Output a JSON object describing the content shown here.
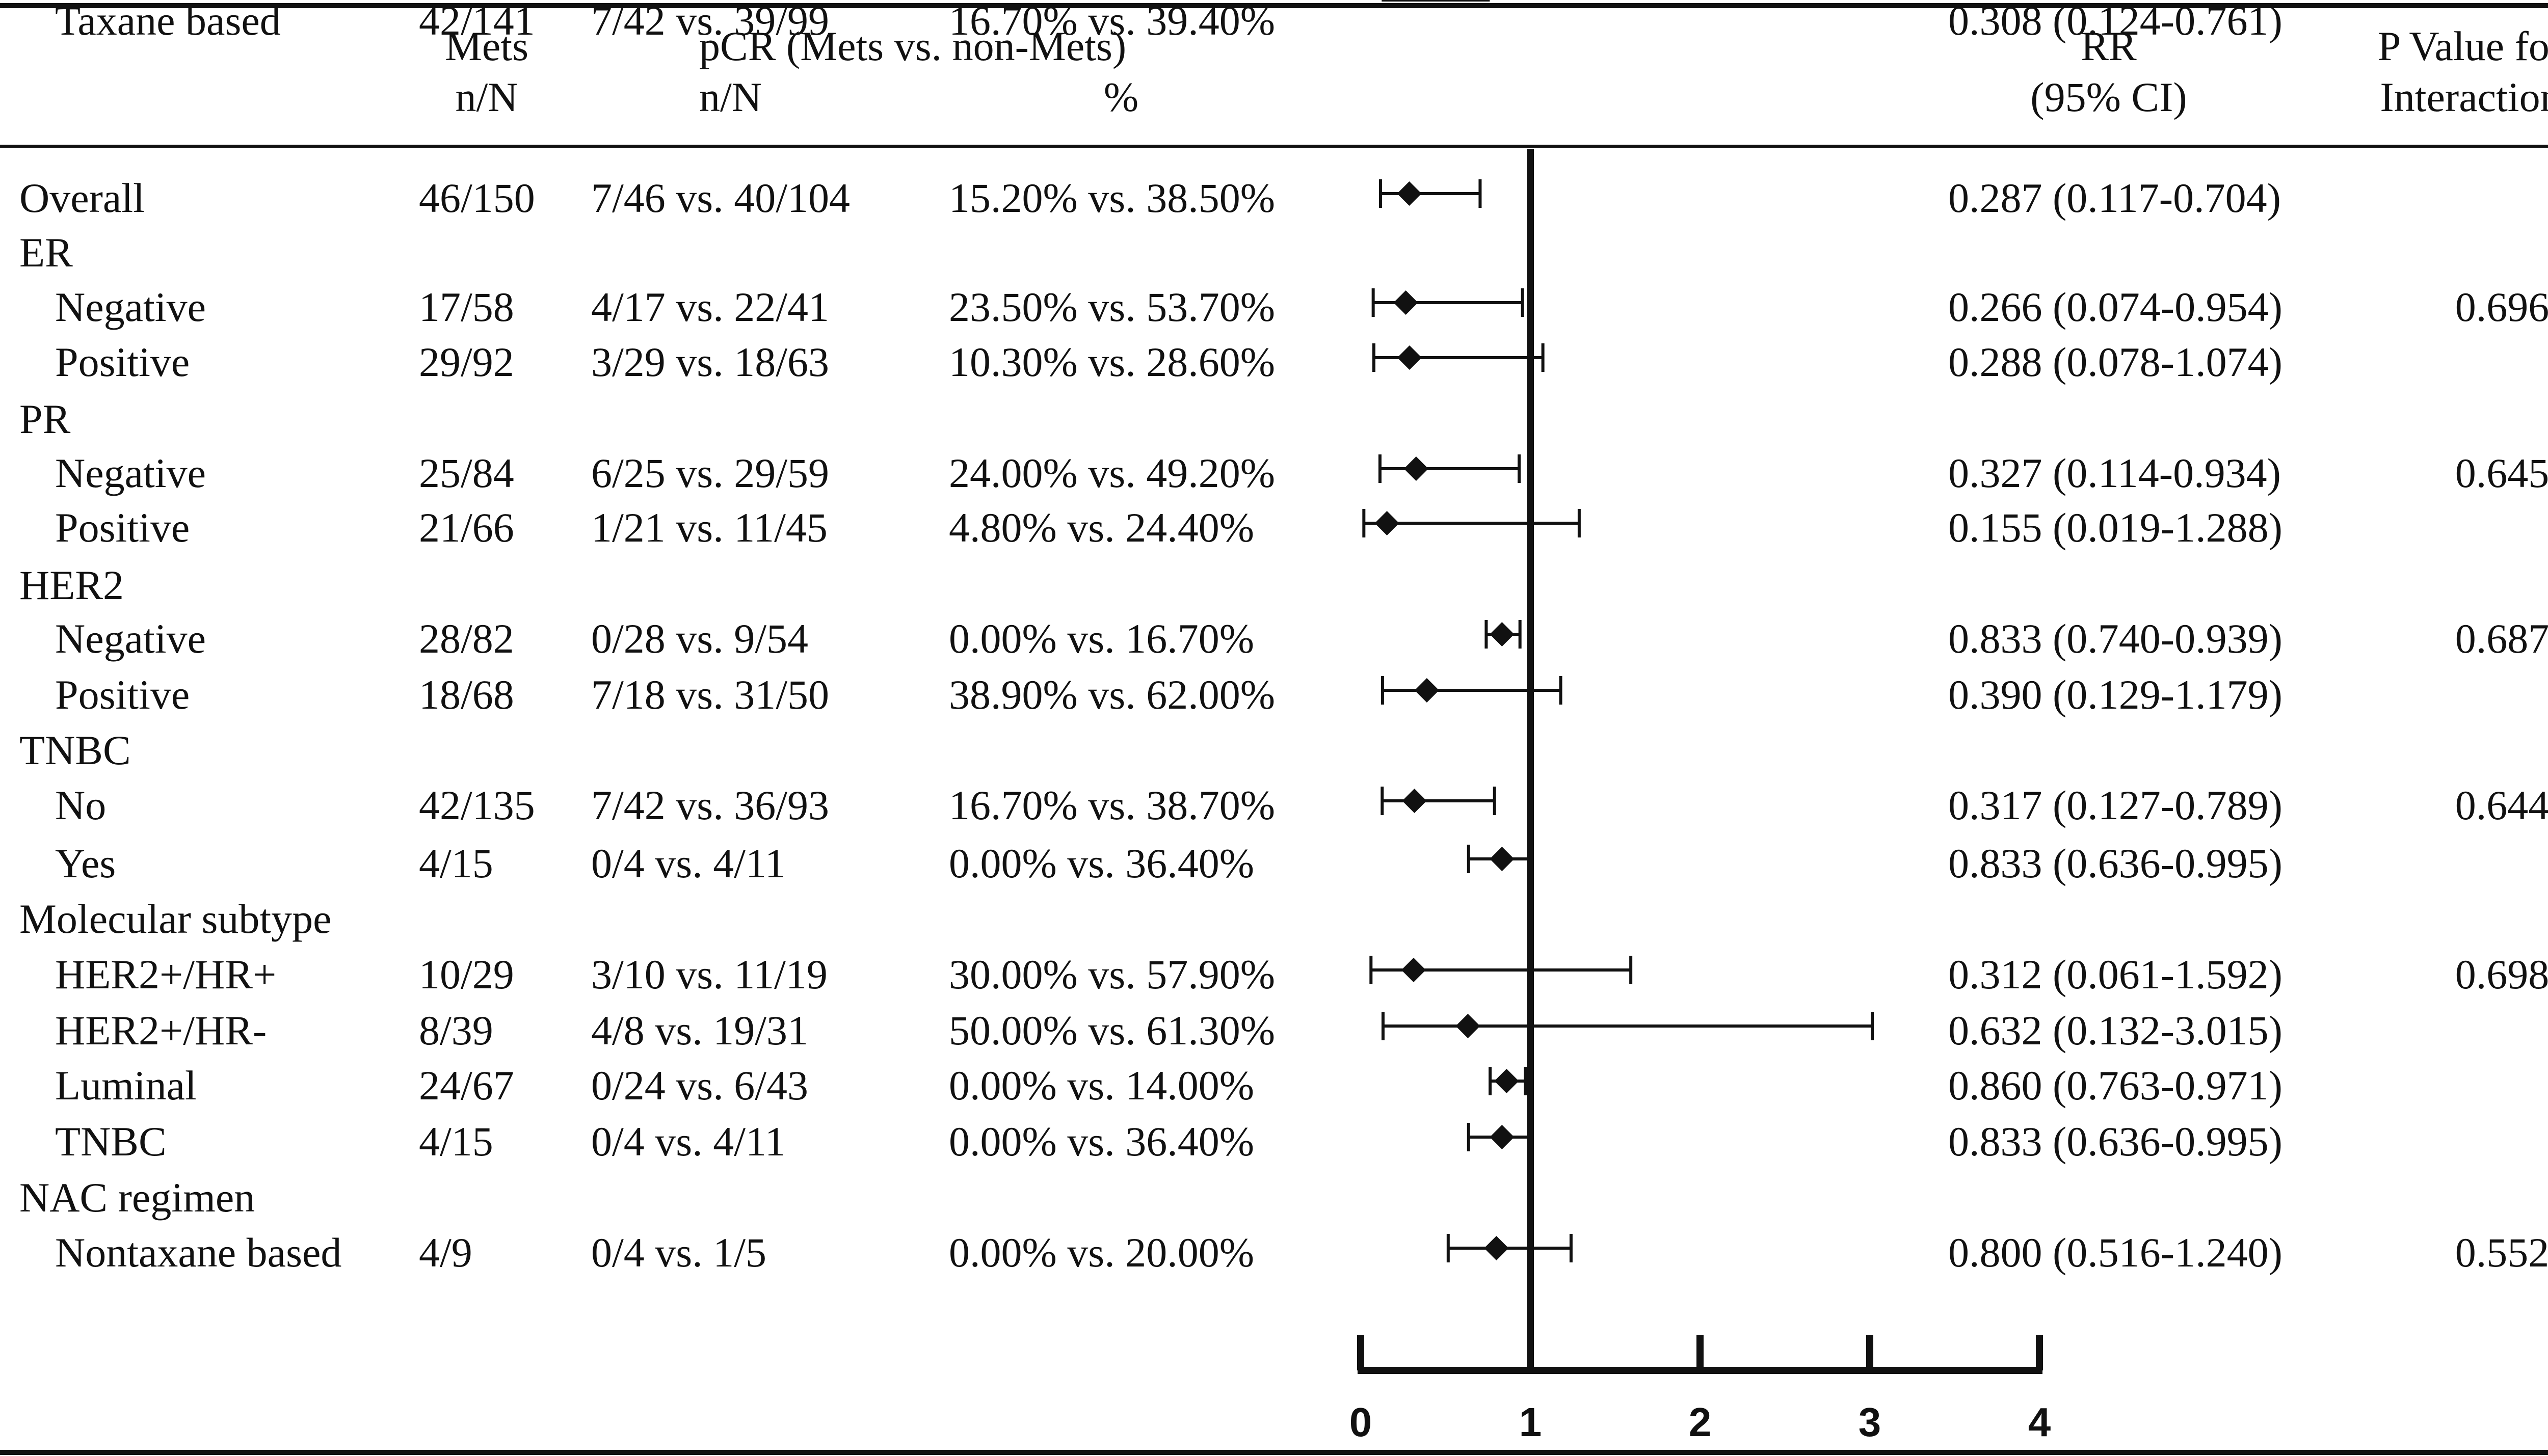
{
  "columns": {
    "mets": [
      "Mets",
      "n/N"
    ],
    "pcr_title": "pCR (Mets vs. non-Mets)",
    "pcr_nn": "n/N",
    "pcr_pct": "%",
    "rr": [
      "RR",
      "(95% CI)"
    ],
    "pval": [
      "P Value for",
      "Interaction"
    ]
  },
  "chart_data": {
    "type": "forest",
    "x_ticks": [
      "0",
      "1",
      "2",
      "3",
      "4"
    ],
    "xlim": [
      0,
      4
    ],
    "reference_line": 1,
    "rows": [
      {
        "label": "Overall",
        "group": true,
        "mets": "46/150",
        "pcr": "7/46 vs. 40/104",
        "pct": "15.20% vs. 38.50%",
        "rr_text": "0.287 (0.117-0.704)",
        "pval": "",
        "rr": 0.287,
        "lo": 0.117,
        "hi": 0.704
      },
      {
        "label": "ER",
        "group": true
      },
      {
        "label": "Negative",
        "group": false,
        "mets": "17/58",
        "pcr": "4/17 vs. 22/41",
        "pct": "23.50% vs. 53.70%",
        "rr_text": "0.266 (0.074-0.954)",
        "pval": "0.696",
        "rr": 0.266,
        "lo": 0.074,
        "hi": 0.954
      },
      {
        "label": "Positive",
        "group": false,
        "mets": "29/92",
        "pcr": "3/29 vs. 18/63",
        "pct": "10.30% vs. 28.60%",
        "rr_text": "0.288 (0.078-1.074)",
        "pval": "",
        "rr": 0.288,
        "lo": 0.078,
        "hi": 1.074
      },
      {
        "label": "PR",
        "group": true
      },
      {
        "label": "Negative",
        "group": false,
        "mets": "25/84",
        "pcr": "6/25 vs. 29/59",
        "pct": "24.00% vs. 49.20%",
        "rr_text": "0.327 (0.114-0.934)",
        "pval": "0.645",
        "rr": 0.327,
        "lo": 0.114,
        "hi": 0.934
      },
      {
        "label": "Positive",
        "group": false,
        "mets": "21/66",
        "pcr": "1/21 vs. 11/45",
        "pct": "4.80% vs. 24.40%",
        "rr_text": "0.155 (0.019-1.288)",
        "pval": "",
        "rr": 0.155,
        "lo": 0.019,
        "hi": 1.288
      },
      {
        "label": "HER2",
        "group": true
      },
      {
        "label": "Negative",
        "group": false,
        "mets": "28/82",
        "pcr": "0/28 vs. 9/54",
        "pct": "0.00% vs. 16.70%",
        "rr_text": "0.833 (0.740-0.939)",
        "pval": "0.687",
        "rr": 0.833,
        "lo": 0.74,
        "hi": 0.939
      },
      {
        "label": "Positive",
        "group": false,
        "mets": "18/68",
        "pcr": "7/18 vs. 31/50",
        "pct": "38.90% vs. 62.00%",
        "rr_text": "0.390 (0.129-1.179)",
        "pval": "",
        "rr": 0.39,
        "lo": 0.129,
        "hi": 1.179
      },
      {
        "label": "TNBC",
        "group": true
      },
      {
        "label": "No",
        "group": false,
        "mets": "42/135",
        "pcr": "7/42 vs. 36/93",
        "pct": "16.70% vs. 38.70%",
        "rr_text": "0.317 (0.127-0.789)",
        "pval": "0.644",
        "rr": 0.317,
        "lo": 0.127,
        "hi": 0.789
      },
      {
        "label": "Yes",
        "group": false,
        "mets": "4/15",
        "pcr": "0/4 vs. 4/11",
        "pct": "0.00% vs. 36.40%",
        "rr_text": "0.833 (0.636-0.995)",
        "pval": "",
        "rr": 0.833,
        "lo": 0.636,
        "hi": 0.995
      },
      {
        "label": "Molecular subtype",
        "group": true
      },
      {
        "label": "HER2+/HR+",
        "group": false,
        "mets": "10/29",
        "pcr": "3/10 vs. 11/19",
        "pct": "30.00% vs. 57.90%",
        "rr_text": "0.312 (0.061-1.592)",
        "pval": "0.698",
        "rr": 0.312,
        "lo": 0.061,
        "hi": 1.592
      },
      {
        "label": "HER2+/HR-",
        "group": false,
        "mets": "8/39",
        "pcr": "4/8 vs. 19/31",
        "pct": "50.00% vs. 61.30%",
        "rr_text": "0.632 (0.132-3.015)",
        "pval": "",
        "rr": 0.632,
        "lo": 0.132,
        "hi": 3.015
      },
      {
        "label": "Luminal",
        "group": false,
        "mets": "24/67",
        "pcr": "0/24 vs. 6/43",
        "pct": "0.00% vs. 14.00%",
        "rr_text": "0.860 (0.763-0.971)",
        "pval": "",
        "rr": 0.86,
        "lo": 0.763,
        "hi": 0.971
      },
      {
        "label": "TNBC",
        "group": false,
        "mets": "4/15",
        "pcr": "0/4 vs. 4/11",
        "pct": "0.00% vs. 36.40%",
        "rr_text": "0.833 (0.636-0.995)",
        "pval": "",
        "rr": 0.833,
        "lo": 0.636,
        "hi": 0.995
      },
      {
        "label": "NAC regimen",
        "group": true
      },
      {
        "label": "Nontaxane based",
        "group": false,
        "mets": "4/9",
        "pcr": "0/4 vs. 1/5",
        "pct": "0.00% vs. 20.00%",
        "rr_text": "0.800 (0.516-1.240)",
        "pval": "0.552",
        "rr": 0.8,
        "lo": 0.516,
        "hi": 1.24
      },
      {
        "label": "Taxane based",
        "group": false,
        "mets": "42/141",
        "pcr": "7/42 vs. 39/99",
        "pct": "16.70% vs. 39.40%",
        "rr_text": "0.308 (0.124-0.761)",
        "pval": "",
        "rr": 0.308,
        "lo": 0.124,
        "hi": 0.761
      }
    ]
  }
}
